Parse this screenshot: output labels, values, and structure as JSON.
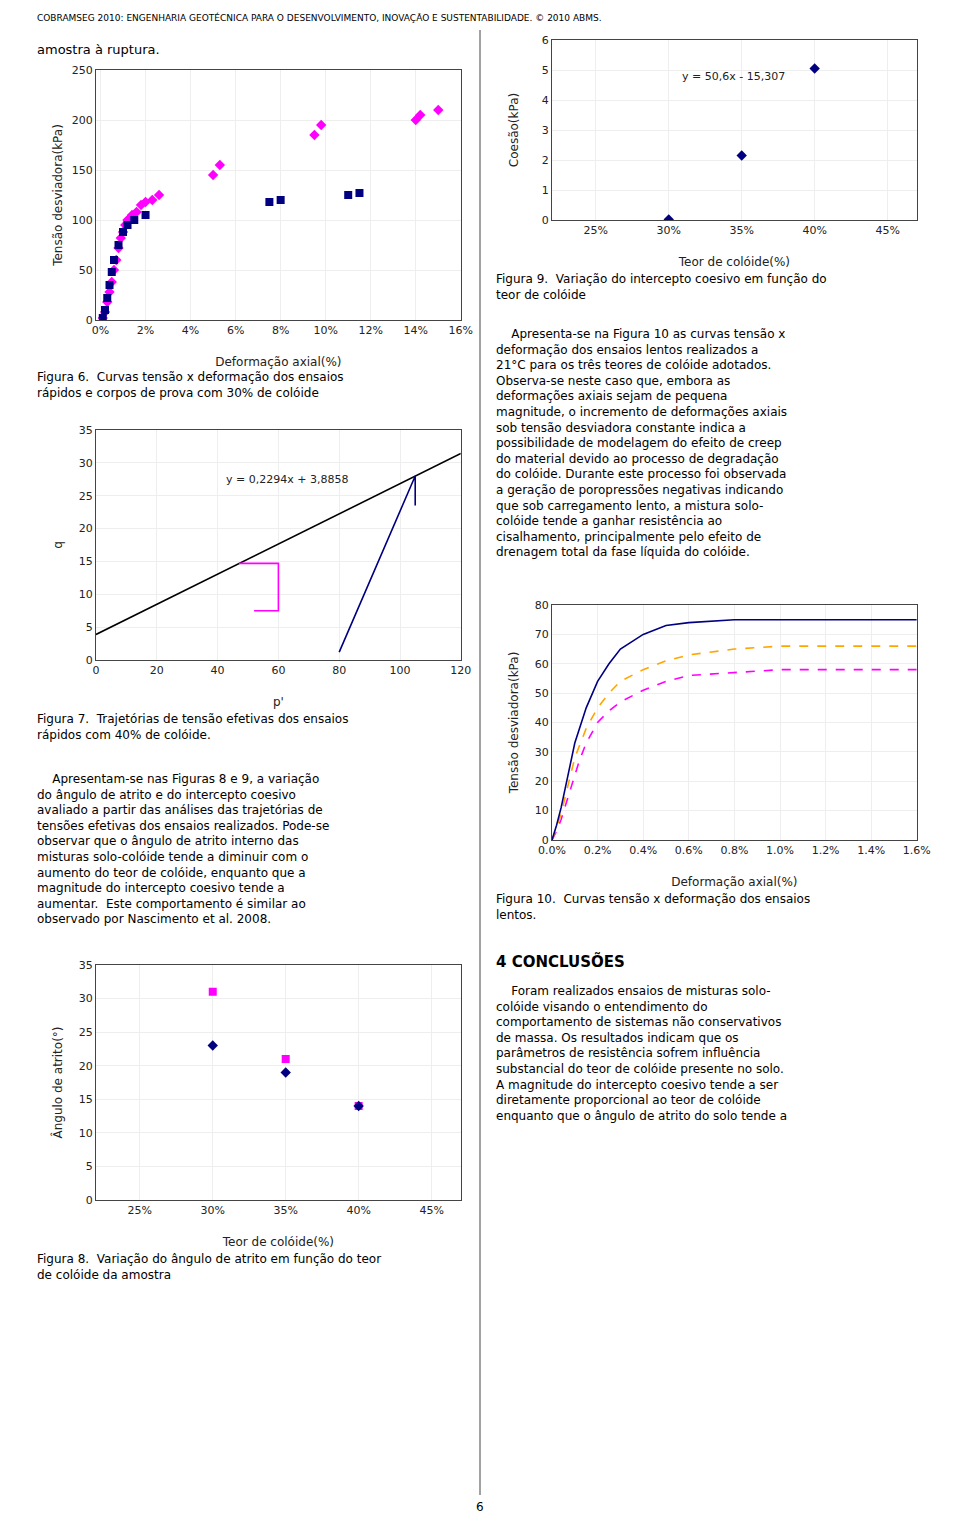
{
  "page": {
    "header": "COBRAMSEG 2010: ENGENHARIA GEOTÉCNICA PARA O DESENVOLVIMENTO, INOVAÇÃO E SUSTENTABILIDADE. © 2010 ABMS.",
    "page_number": "6",
    "paragraphs": [
      [
        "amostra à ruptura."
      ],
      [
        "    Apresentam-se nas Figuras 8 e 9, a variação",
        "do ângulo de atrito e do intercepto coesivo",
        "avaliado a partir das análises das trajetórias de",
        "tensões efetivas dos ensaios realizados. Pode-se",
        "observar que o ângulo de atrito interno das",
        "misturas solo-colóide tende a diminuir com o",
        "aumento do teor de colóide, enquanto que a",
        "magnitude do intercepto coesivo tende a",
        "aumentar.  Este comportamento é similar ao",
        "observado por Nascimento et al. 2008."
      ],
      [
        "    Apresenta-se na Figura 10 as curvas tensão x",
        "deformação dos ensaios lentos realizados a",
        "21°C para os três teores de colóide adotados.",
        "Observa-se neste caso que, embora as",
        "deformações axiais sejam de pequena",
        "magnitude, o incremento de deformações axiais",
        "sob tensão desviadora constante indica a",
        "possibilidade de modelagem do efeito de creep",
        "do material devido ao processo de degradação",
        "do colóide. Durante este processo foi observada",
        "a geração de poropressões negativas indicando",
        "que sob carregamento lento, a mistura solo-",
        "colóide tende a ganhar resistência ao",
        "cisalhamento, principalmente pelo efeito de",
        "drenagem total da fase líquida do colóide."
      ],
      [
        "4 CONCLUSÕES"
      ],
      [
        "    Foram realizados ensaios de misturas solo-",
        "colóide visando o entendimento do",
        "comportamento de sistemas não conservativos",
        "de massa. Os resultados indicam que os",
        "parâmetros de resistência sofrem influência",
        "substancial do teor de colóide presente no solo.",
        "A magnitude do intercepto coesivo tende a ser",
        "diretamente proporcional ao teor de colóide",
        "enquanto que o ângulo de atrito do solo tende a"
      ]
    ]
  },
  "chart_data": [
    {
      "type": "scatter",
      "title": [
        "Figura 6.  Curvas tensão x deformação dos ensaios",
        "rápidos e corpos de prova com 30% de colóide"
      ],
      "xlabel": "Deformação axial(%)",
      "ylabel": "Tensão desviadora(kPa)",
      "series": [
        {
          "color": "#FF00FF",
          "marker": "diamond",
          "x": [
            0.1,
            0.2,
            0.3,
            0.4,
            0.5,
            0.6,
            0.7,
            0.8,
            0.9,
            1.0,
            1.1,
            1.2,
            1.4,
            1.6,
            1.8,
            2.0,
            2.3,
            2.6,
            5.0,
            5.3,
            9.5,
            9.8,
            14.0,
            14.2,
            15.0
          ],
          "values": [
            2,
            8,
            18,
            28,
            38,
            50,
            60,
            72,
            82,
            88,
            95,
            100,
            105,
            108,
            115,
            118,
            120,
            125,
            145,
            155,
            185,
            195,
            200,
            205,
            210
          ]
        },
        {
          "color": "#000080",
          "marker": "square",
          "x": [
            0.1,
            0.2,
            0.3,
            0.4,
            0.5,
            0.6,
            0.8,
            1.0,
            1.2,
            1.5,
            2.0,
            7.5,
            8.0,
            11.0,
            11.5
          ],
          "values": [
            2,
            10,
            22,
            35,
            48,
            60,
            75,
            88,
            95,
            100,
            105,
            118,
            120,
            125,
            127
          ]
        }
      ],
      "xlim": [
        -0.2,
        16
      ],
      "xticks": [
        {
          "value": 0,
          "label": "0%"
        },
        {
          "value": 2,
          "label": "2%"
        },
        {
          "value": 4,
          "label": "4%"
        },
        {
          "value": 6,
          "label": "6%"
        },
        {
          "value": 8,
          "label": "8%"
        },
        {
          "value": 10,
          "label": "10%"
        },
        {
          "value": 12,
          "label": "12%"
        },
        {
          "value": 14,
          "label": "14%"
        },
        {
          "value": 16,
          "label": "16%"
        }
      ],
      "ylim": [
        0,
        250
      ],
      "yticks": [
        0,
        50,
        100,
        150,
        200,
        250
      ],
      "grid": true
    },
    {
      "type": "line",
      "title": [
        "Figura 7.  Trajetórias de tensão efetivas dos ensaios",
        "rápidos com 40% de colóide."
      ],
      "xlabel": "p'",
      "ylabel": "q",
      "annotations": [
        "y = 0,2294x + 3,8858"
      ],
      "series": [
        {
          "color": "#000000",
          "x": [
            0,
            120
          ],
          "values": [
            3.8858,
            31.4138
          ]
        },
        {
          "color": "#FF00FF",
          "x": [
            47,
            52,
            60,
            60,
            52
          ],
          "values": [
            14.7,
            14.7,
            14.7,
            7.5,
            7.5
          ]
        },
        {
          "color": "#000080",
          "x": [
            80,
            105,
            105
          ],
          "values": [
            1.2,
            28.0,
            23.5
          ]
        }
      ],
      "xlim": [
        0,
        120
      ],
      "xticks": [
        0,
        20,
        40,
        60,
        80,
        100,
        120
      ],
      "ylim": [
        0,
        35
      ],
      "yticks": [
        0,
        5,
        10,
        15,
        20,
        25,
        30,
        35
      ],
      "grid": true
    },
    {
      "type": "scatter",
      "title": [
        "Figura 8.  Variação do ângulo de atrito em função do teor",
        "de colóide da amostra"
      ],
      "xlabel": "Teor de colóide(%)",
      "ylabel": "Ângulo de atrito(°)",
      "series": [
        {
          "color": "#FF00FF",
          "marker": "square",
          "x": [
            30,
            35,
            40
          ],
          "values": [
            31,
            21,
            14
          ]
        },
        {
          "color": "#000080",
          "marker": "diamond",
          "x": [
            30,
            35,
            40
          ],
          "values": [
            23,
            19,
            14
          ]
        }
      ],
      "xlim": [
        22,
        47
      ],
      "xticks": [
        {
          "value": 25,
          "label": "25%"
        },
        {
          "value": 30,
          "label": "30%"
        },
        {
          "value": 35,
          "label": "35%"
        },
        {
          "value": 40,
          "label": "40%"
        },
        {
          "value": 45,
          "label": "45%"
        }
      ],
      "ylim": [
        0,
        35
      ],
      "yticks": [
        0,
        5,
        10,
        15,
        20,
        25,
        30,
        35
      ],
      "grid": true
    },
    {
      "type": "scatter",
      "title": [
        "Figura 9.  Variação do intercepto coesivo em função do",
        "teor de colóide"
      ],
      "xlabel": "Teor de colóide(%)",
      "ylabel": "Coesão(kPa)",
      "annotations": [
        "y = 50,6x - 15,307"
      ],
      "series": [
        {
          "color": "#000080",
          "marker": "diamond",
          "x": [
            30,
            35,
            40
          ],
          "values": [
            0.02,
            2.15,
            5.05
          ]
        }
      ],
      "xlim": [
        22,
        47
      ],
      "xticks": [
        {
          "value": 25,
          "label": "25%"
        },
        {
          "value": 30,
          "label": "30%"
        },
        {
          "value": 35,
          "label": "35%"
        },
        {
          "value": 40,
          "label": "40%"
        },
        {
          "value": 45,
          "label": "45%"
        }
      ],
      "ylim": [
        0,
        6
      ],
      "yticks": [
        0,
        1,
        2,
        3,
        4,
        5,
        6
      ],
      "grid": true
    },
    {
      "type": "line",
      "title": [
        "Figura 10.  Curvas tensão x deformação dos ensaios",
        "lentos."
      ],
      "xlabel": "Deformação axial(%)",
      "ylabel": "Tensão desviadora(kPa)",
      "series": [
        {
          "color": "#FF00FF",
          "line_style": "dashed",
          "x": [
            0.0,
            0.02,
            0.04,
            0.06,
            0.08,
            0.1,
            0.12,
            0.15,
            0.2,
            0.25,
            0.3,
            0.4,
            0.5,
            0.6,
            0.8,
            1.0,
            1.2,
            1.4,
            1.6
          ],
          "values": [
            0,
            3,
            7,
            12,
            17,
            22,
            27,
            33,
            40,
            44,
            47,
            51,
            54,
            56,
            57,
            58,
            58,
            58,
            58
          ]
        },
        {
          "color": "#FFA500",
          "line_style": "dashed",
          "x": [
            0.0,
            0.02,
            0.04,
            0.06,
            0.08,
            0.1,
            0.15,
            0.2,
            0.25,
            0.3,
            0.4,
            0.5,
            0.6,
            0.8,
            1.0,
            1.2,
            1.4,
            1.6
          ],
          "values": [
            0,
            4,
            9,
            15,
            22,
            28,
            38,
            45,
            50,
            54,
            58,
            61,
            63,
            65,
            66,
            66,
            66,
            66
          ]
        },
        {
          "color": "#000080",
          "line_style": "solid",
          "x": [
            0.0,
            0.02,
            0.04,
            0.06,
            0.08,
            0.1,
            0.15,
            0.2,
            0.25,
            0.3,
            0.4,
            0.5,
            0.6,
            0.8,
            1.0,
            1.2,
            1.4,
            1.6
          ],
          "values": [
            0,
            5,
            11,
            18,
            26,
            33,
            45,
            54,
            60,
            65,
            70,
            73,
            74,
            75,
            75,
            75,
            75,
            75
          ]
        }
      ],
      "xlim": [
        0,
        1.6
      ],
      "xticks": [
        {
          "value": 0.0,
          "label": "0.0%"
        },
        {
          "value": 0.2,
          "label": "0.2%"
        },
        {
          "value": 0.4,
          "label": "0.4%"
        },
        {
          "value": 0.6,
          "label": "0.6%"
        },
        {
          "value": 0.8,
          "label": "0.8%"
        },
        {
          "value": 1.0,
          "label": "1.0%"
        },
        {
          "value": 1.2,
          "label": "1.2%"
        },
        {
          "value": 1.4,
          "label": "1.4%"
        },
        {
          "value": 1.6,
          "label": "1.6%"
        }
      ],
      "ylim": [
        0,
        80
      ],
      "yticks": [
        0,
        10,
        20,
        30,
        40,
        50,
        60,
        70,
        80
      ],
      "grid": true
    }
  ]
}
